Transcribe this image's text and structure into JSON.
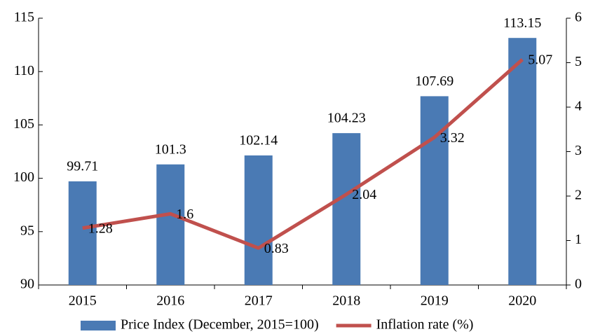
{
  "chart_data": {
    "type": "bar",
    "categories": [
      "2015",
      "2016",
      "2017",
      "2018",
      "2019",
      "2020"
    ],
    "series": [
      {
        "name": "Price Index (December, 2015=100)",
        "type": "bar",
        "color": "#4a7ab4",
        "values": [
          99.71,
          101.3,
          102.14,
          104.23,
          107.69,
          113.15
        ]
      },
      {
        "name": "Inflation rate (%)",
        "type": "line",
        "axis": "y2",
        "color": "#c0504d",
        "values": [
          1.28,
          1.6,
          0.83,
          2.04,
          3.32,
          5.07
        ]
      }
    ],
    "ylim": [
      90,
      115
    ],
    "yticks": [
      90,
      95,
      100,
      105,
      110,
      115
    ],
    "y2lim": [
      0,
      6
    ],
    "y2ticks": [
      0,
      1,
      2,
      3,
      4,
      5,
      6
    ],
    "grid": false,
    "legend": "bottom"
  }
}
